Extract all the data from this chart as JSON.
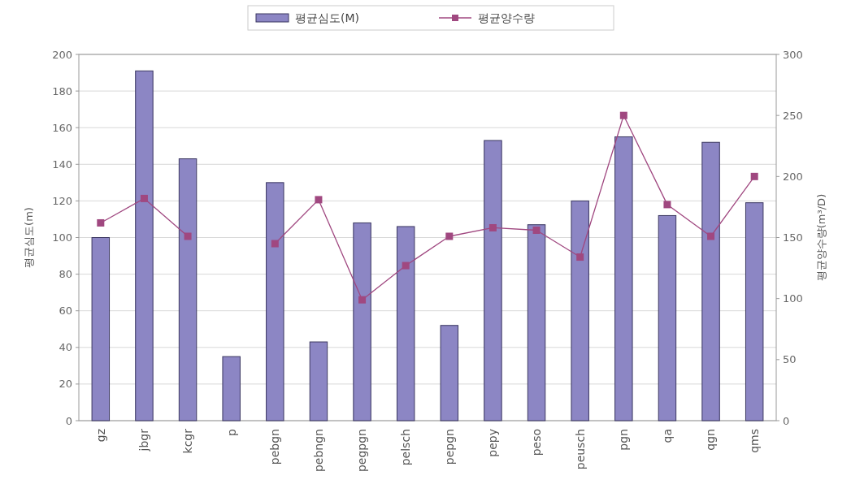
{
  "chart_data": {
    "type": "bar",
    "categories": [
      "gz",
      "jbgr",
      "kcgr",
      "p",
      "pebgn",
      "pebngn",
      "pegpgn",
      "pelsch",
      "pepgn",
      "pepy",
      "peso",
      "peusch",
      "pgn",
      "qa",
      "qgn",
      "qms"
    ],
    "series": [
      {
        "name": "평균심도(M)",
        "color": "#8c86c4",
        "values": [
          100,
          191,
          143,
          35,
          130,
          43,
          108,
          106,
          52,
          153,
          107,
          120,
          155,
          112,
          152,
          119
        ]
      },
      {
        "name": "평균양수량",
        "type": "line",
        "axis": "y2",
        "color": "#a04880",
        "marker": "square",
        "values": [
          162,
          182,
          151,
          null,
          145,
          181,
          99,
          127,
          151,
          158,
          156,
          134,
          250,
          177,
          151,
          200
        ]
      }
    ],
    "ylabel": "평균심도(m)",
    "y2label": "평균양수량(m³/D)",
    "ylim": [
      0,
      200
    ],
    "yticks": [
      0,
      20,
      40,
      60,
      80,
      100,
      120,
      140,
      160,
      180,
      200
    ],
    "y2lim": [
      0,
      300
    ],
    "y2ticks": [
      0,
      50,
      100,
      150,
      200,
      250,
      300
    ],
    "grid": "y",
    "legend": "top"
  }
}
